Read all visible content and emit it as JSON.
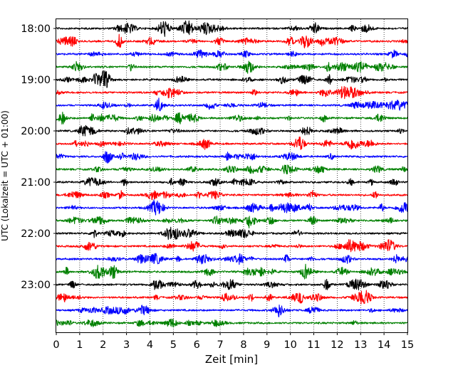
{
  "chart_data": {
    "type": "line",
    "title": "",
    "xlabel": "Zeit  [min]",
    "ylabel": "UTC (Lokalzeit = UTC + 01:00)",
    "xlim": [
      0,
      15
    ],
    "x_ticks": [
      "0",
      "1",
      "2",
      "3",
      "4",
      "5",
      "6",
      "7",
      "8",
      "9",
      "10",
      "11",
      "12",
      "13",
      "14",
      "15"
    ],
    "y_ticks": [
      "18:00",
      "19:00",
      "20:00",
      "21:00",
      "22:00",
      "23:00"
    ],
    "grid": "vertical dotted",
    "trace_interval_min": 15,
    "colors": [
      "#000000",
      "#ff0000",
      "#0000ff",
      "#008000"
    ],
    "traces": [
      {
        "start": "18:00",
        "color": "#000000"
      },
      {
        "start": "18:15",
        "color": "#ff0000"
      },
      {
        "start": "18:30",
        "color": "#0000ff"
      },
      {
        "start": "18:45",
        "color": "#008000"
      },
      {
        "start": "19:00",
        "color": "#000000"
      },
      {
        "start": "19:15",
        "color": "#ff0000"
      },
      {
        "start": "19:30",
        "color": "#0000ff"
      },
      {
        "start": "19:45",
        "color": "#008000"
      },
      {
        "start": "20:00",
        "color": "#000000"
      },
      {
        "start": "20:15",
        "color": "#ff0000"
      },
      {
        "start": "20:30",
        "color": "#0000ff"
      },
      {
        "start": "20:45",
        "color": "#008000"
      },
      {
        "start": "21:00",
        "color": "#000000"
      },
      {
        "start": "21:15",
        "color": "#ff0000"
      },
      {
        "start": "21:30",
        "color": "#0000ff"
      },
      {
        "start": "21:45",
        "color": "#008000"
      },
      {
        "start": "22:00",
        "color": "#000000"
      },
      {
        "start": "22:15",
        "color": "#ff0000"
      },
      {
        "start": "22:30",
        "color": "#0000ff"
      },
      {
        "start": "22:45",
        "color": "#008000"
      },
      {
        "start": "23:00",
        "color": "#000000"
      },
      {
        "start": "23:15",
        "color": "#ff0000"
      },
      {
        "start": "23:30",
        "color": "#0000ff"
      },
      {
        "start": "23:45",
        "color": "#008000"
      }
    ]
  }
}
